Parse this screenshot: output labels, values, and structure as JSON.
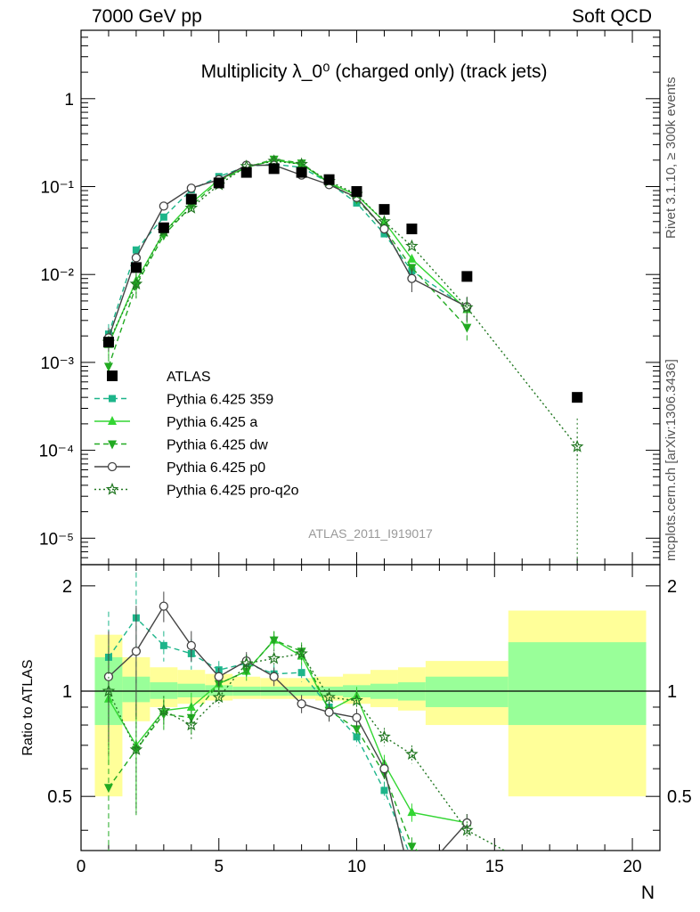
{
  "header": {
    "left": "7000 GeV pp",
    "right": "Soft QCD"
  },
  "side_labels": {
    "rivet": "Rivet 3.1.10, ≥ 300k events",
    "mcplots": "mcplots.cern.ch [arXiv:1306.3436]"
  },
  "chart_data": {
    "type": "line",
    "title": "Multiplicity λ_0⁰ (charged only) (track jets)",
    "watermark": "ATLAS_2011_I919017",
    "xlabel": "N",
    "ylabel_ratio": "Ratio to ATLAS",
    "xlim": [
      0,
      21
    ],
    "ylim_main": [
      5e-06,
      6
    ],
    "ylim_ratio": [
      0.35,
      2.3
    ],
    "y_log": true,
    "x_ticks": [
      "0",
      "5",
      "10",
      "15",
      "20"
    ],
    "y_ticks_main": [
      "1",
      "10⁻¹",
      "10⁻²",
      "10⁻³",
      "10⁻⁴",
      "10⁻⁵"
    ],
    "y_ticks_ratio": [
      "2",
      "1",
      "0.5"
    ],
    "legend_position": "bottom-left",
    "data": {
      "name": "ATLAS",
      "x": [
        1,
        2,
        3,
        4,
        5,
        6,
        7,
        8,
        9,
        10,
        11,
        12,
        14,
        18
      ],
      "y": [
        0.0017,
        0.012,
        0.034,
        0.072,
        0.11,
        0.145,
        0.16,
        0.145,
        0.12,
        0.088,
        0.055,
        0.033,
        0.0095,
        0.0004
      ]
    },
    "bands": {
      "inner_color": "#99ff99",
      "outer_color": "#ffff99",
      "bins": [
        {
          "x0": 0.5,
          "x1": 1.5,
          "inner": [
            0.8,
            1.25
          ],
          "outer": [
            0.5,
            1.45
          ]
        },
        {
          "x0": 1.5,
          "x1": 2.5,
          "inner": [
            0.93,
            1.1
          ],
          "outer": [
            0.82,
            1.25
          ]
        },
        {
          "x0": 2.5,
          "x1": 3.5,
          "inner": [
            0.95,
            1.06
          ],
          "outer": [
            0.9,
            1.17
          ]
        },
        {
          "x0": 3.5,
          "x1": 4.5,
          "inner": [
            0.96,
            1.05
          ],
          "outer": [
            0.92,
            1.15
          ]
        },
        {
          "x0": 4.5,
          "x1": 5.5,
          "inner": [
            0.97,
            1.04
          ],
          "outer": [
            0.94,
            1.12
          ]
        },
        {
          "x0": 5.5,
          "x1": 6.5,
          "inner": [
            0.97,
            1.03
          ],
          "outer": [
            0.95,
            1.1
          ]
        },
        {
          "x0": 6.5,
          "x1": 7.5,
          "inner": [
            0.97,
            1.03
          ],
          "outer": [
            0.95,
            1.09
          ]
        },
        {
          "x0": 7.5,
          "x1": 8.5,
          "inner": [
            0.97,
            1.03
          ],
          "outer": [
            0.95,
            1.09
          ]
        },
        {
          "x0": 8.5,
          "x1": 9.5,
          "inner": [
            0.97,
            1.03
          ],
          "outer": [
            0.94,
            1.1
          ]
        },
        {
          "x0": 9.5,
          "x1": 10.5,
          "inner": [
            0.96,
            1.04
          ],
          "outer": [
            0.92,
            1.12
          ]
        },
        {
          "x0": 10.5,
          "x1": 11.5,
          "inner": [
            0.95,
            1.05
          ],
          "outer": [
            0.9,
            1.15
          ]
        },
        {
          "x0": 11.5,
          "x1": 12.5,
          "inner": [
            0.94,
            1.06
          ],
          "outer": [
            0.88,
            1.17
          ]
        },
        {
          "x0": 12.5,
          "x1": 15.5,
          "inner": [
            0.9,
            1.1
          ],
          "outer": [
            0.8,
            1.22
          ]
        },
        {
          "x0": 15.5,
          "x1": 20.5,
          "inner": [
            0.8,
            1.38
          ],
          "outer": [
            0.5,
            1.7
          ]
        }
      ]
    },
    "series": [
      {
        "name": "Pythia 6.425 359",
        "color": "#1db58a",
        "dash": "6,4",
        "marker": "square",
        "x": [
          1,
          2,
          3,
          4,
          5,
          6,
          7,
          8,
          9,
          10,
          11,
          12,
          14
        ],
        "y": [
          0.0021,
          0.019,
          0.045,
          0.092,
          0.13,
          0.17,
          0.18,
          0.165,
          0.11,
          0.065,
          0.029,
          0.011,
          0.0042
        ],
        "ratio": [
          1.25,
          1.62,
          1.35,
          1.28,
          1.15,
          1.2,
          1.12,
          1.13,
          0.9,
          0.74,
          0.52,
          0.33,
          0.2
        ]
      },
      {
        "name": "Pythia 6.425 a",
        "color": "#33d633",
        "dash": "",
        "marker": "triangle-up",
        "x": [
          1,
          2,
          3,
          4,
          5,
          6,
          7,
          8,
          9,
          10,
          11,
          12,
          14
        ],
        "y": [
          0.0016,
          0.0085,
          0.03,
          0.065,
          0.12,
          0.165,
          0.2,
          0.18,
          0.11,
          0.08,
          0.04,
          0.015,
          0.004
        ],
        "ratio": [
          0.95,
          0.7,
          0.88,
          0.9,
          1.05,
          1.14,
          1.4,
          1.26,
          0.88,
          0.97,
          0.62,
          0.45,
          0.42
        ]
      },
      {
        "name": "Pythia 6.425 dw",
        "color": "#22aa22",
        "dash": "6,4",
        "marker": "triangle-down",
        "x": [
          1,
          2,
          3,
          4,
          5,
          6,
          7,
          8,
          9,
          10,
          11,
          12,
          14
        ],
        "y": [
          0.0009,
          0.0075,
          0.028,
          0.06,
          0.115,
          0.165,
          0.205,
          0.185,
          0.11,
          0.072,
          0.033,
          0.012,
          0.0025
        ],
        "ratio": [
          0.53,
          0.68,
          0.86,
          0.84,
          1.05,
          1.14,
          1.4,
          1.3,
          0.88,
          0.78,
          0.58,
          0.36,
          0.27
        ]
      },
      {
        "name": "Pythia 6.425 p0",
        "color": "#444444",
        "dash": "",
        "marker": "circle",
        "x": [
          1,
          2,
          3,
          4,
          5,
          6,
          7,
          8,
          9,
          10,
          11,
          12,
          14
        ],
        "y": [
          0.0019,
          0.0155,
          0.06,
          0.096,
          0.12,
          0.175,
          0.175,
          0.135,
          0.105,
          0.075,
          0.033,
          0.009,
          0.0043
        ],
        "ratio": [
          1.1,
          1.3,
          1.75,
          1.35,
          1.1,
          1.22,
          1.1,
          0.92,
          0.87,
          0.84,
          0.6,
          0.28,
          0.42
        ]
      },
      {
        "name": "Pythia 6.425 pro-q2o",
        "color": "#227722",
        "dash": "2,3",
        "marker": "star",
        "x": [
          1,
          2,
          3,
          4,
          5,
          6,
          7,
          8,
          9,
          10,
          11,
          12,
          14,
          18
        ],
        "y": [
          0.0017,
          0.0078,
          0.031,
          0.057,
          0.105,
          0.17,
          0.195,
          0.18,
          0.115,
          0.082,
          0.04,
          0.021,
          0.0042,
          0.00011
        ],
        "ratio": [
          1.0,
          0.68,
          0.88,
          0.8,
          0.96,
          1.2,
          1.24,
          1.28,
          0.96,
          0.94,
          0.74,
          0.66,
          0.4,
          0.27
        ]
      }
    ]
  }
}
